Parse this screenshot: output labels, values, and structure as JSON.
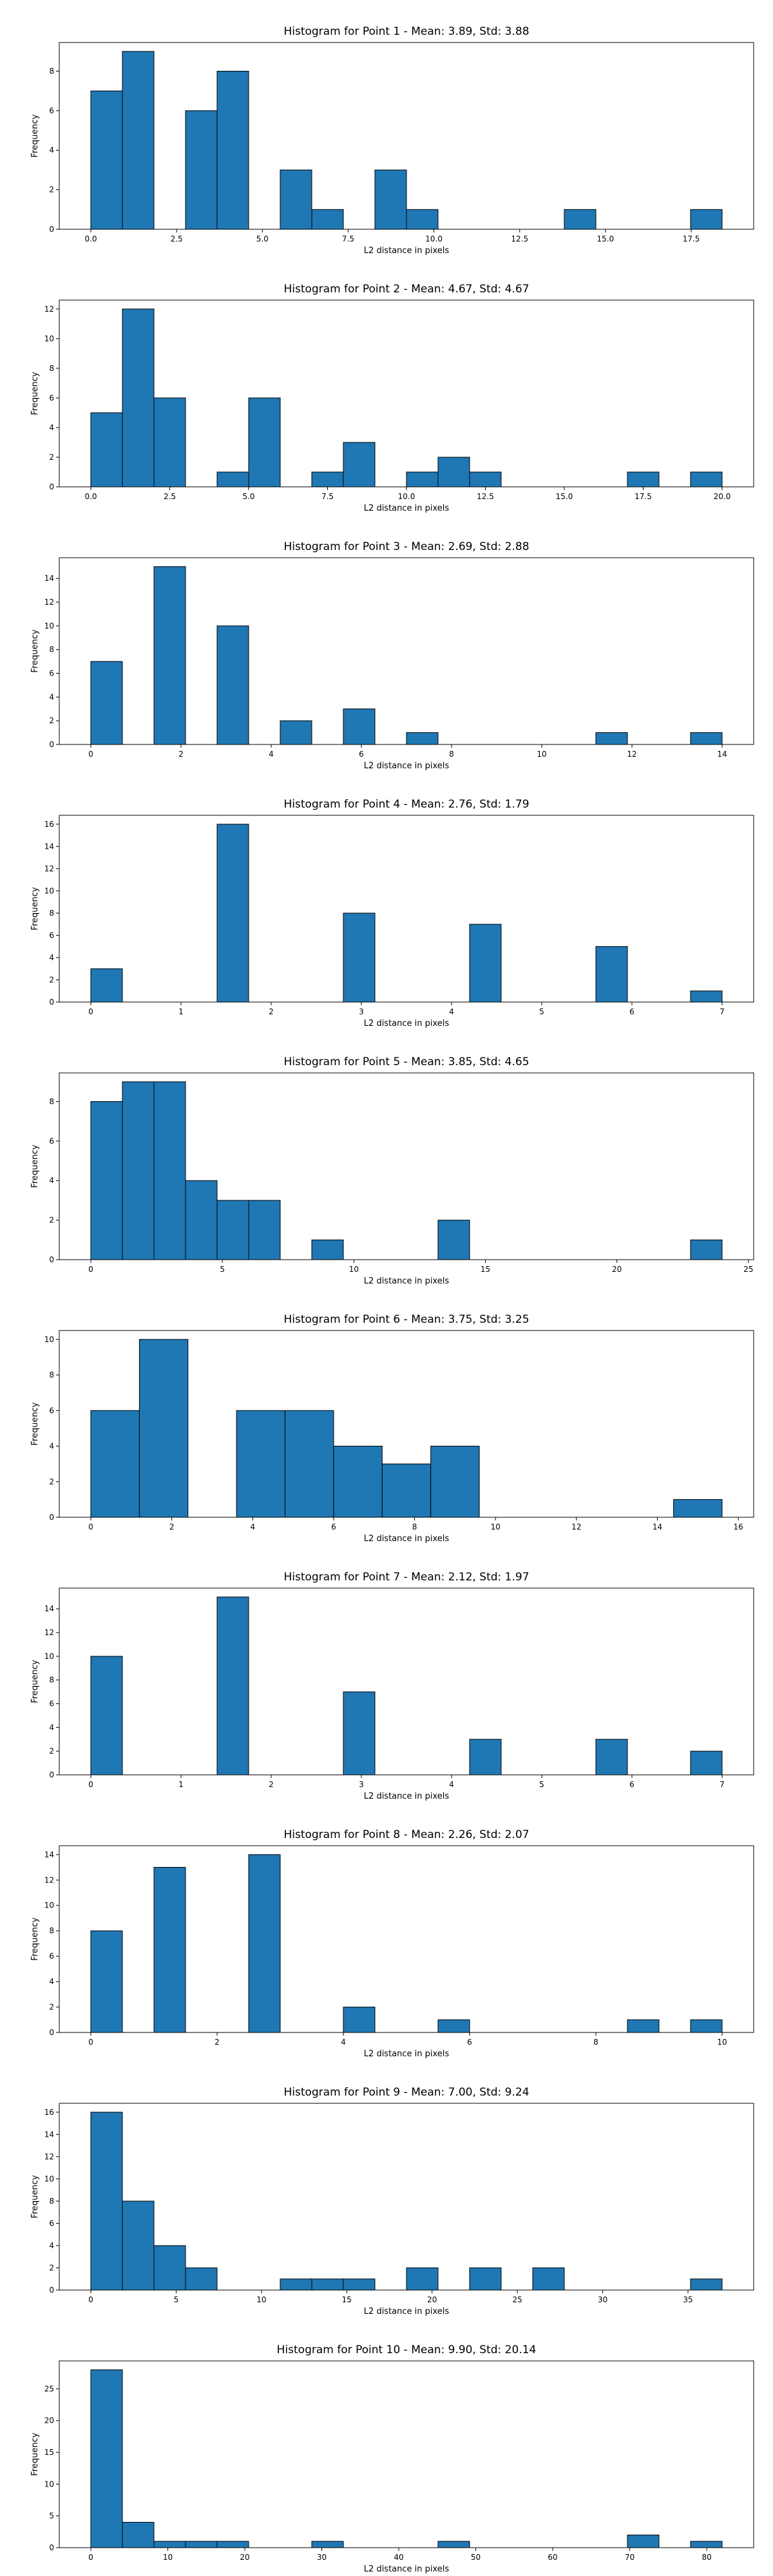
{
  "colors": {
    "bar_fill": "#1f77b4",
    "bar_edge": "#000000",
    "axis": "#000000"
  },
  "chart_data": [
    {
      "type": "bar",
      "title": "Histogram for Point 1 - Mean: 3.89, Std: 3.88",
      "xlabel": "L2 distance in pixels",
      "ylabel": "Frequency",
      "xlim": [
        -0.92,
        19.32
      ],
      "ylim": [
        0,
        9.45
      ],
      "xticks": [
        0,
        2.5,
        5,
        7.5,
        10,
        12.5,
        15,
        17.5
      ],
      "xtick_labels": [
        "0.0",
        "2.5",
        "5.0",
        "7.5",
        "10.0",
        "12.5",
        "15.0",
        "17.5"
      ],
      "yticks": [
        0,
        2,
        4,
        6,
        8
      ],
      "bins": [
        {
          "x0": 0.0,
          "x1": 0.92,
          "count": 7
        },
        {
          "x0": 0.92,
          "x1": 1.84,
          "count": 9
        },
        {
          "x0": 2.76,
          "x1": 3.68,
          "count": 6
        },
        {
          "x0": 3.68,
          "x1": 4.6,
          "count": 8
        },
        {
          "x0": 5.52,
          "x1": 6.44,
          "count": 3
        },
        {
          "x0": 6.44,
          "x1": 7.36,
          "count": 1
        },
        {
          "x0": 8.28,
          "x1": 9.2,
          "count": 3
        },
        {
          "x0": 9.2,
          "x1": 10.12,
          "count": 1
        },
        {
          "x0": 13.8,
          "x1": 14.72,
          "count": 1
        },
        {
          "x0": 17.48,
          "x1": 18.4,
          "count": 1
        }
      ]
    },
    {
      "type": "bar",
      "title": "Histogram for Point 2 - Mean: 4.67, Std: 4.67",
      "xlabel": "L2 distance in pixels",
      "ylabel": "Frequency",
      "xlim": [
        -1.0,
        21.0
      ],
      "ylim": [
        0,
        12.6
      ],
      "xticks": [
        0,
        2.5,
        5,
        7.5,
        10,
        12.5,
        15,
        17.5,
        20
      ],
      "xtick_labels": [
        "0.0",
        "2.5",
        "5.0",
        "7.5",
        "10.0",
        "12.5",
        "15.0",
        "17.5",
        "20.0"
      ],
      "yticks": [
        0,
        2,
        4,
        6,
        8,
        10,
        12
      ],
      "bins": [
        {
          "x0": 0.0,
          "x1": 1.0,
          "count": 5
        },
        {
          "x0": 1.0,
          "x1": 2.0,
          "count": 12
        },
        {
          "x0": 2.0,
          "x1": 3.0,
          "count": 6
        },
        {
          "x0": 4.0,
          "x1": 5.0,
          "count": 1
        },
        {
          "x0": 5.0,
          "x1": 6.0,
          "count": 6
        },
        {
          "x0": 7.0,
          "x1": 8.0,
          "count": 1
        },
        {
          "x0": 8.0,
          "x1": 9.0,
          "count": 3
        },
        {
          "x0": 10.0,
          "x1": 11.0,
          "count": 1
        },
        {
          "x0": 11.0,
          "x1": 12.0,
          "count": 2
        },
        {
          "x0": 12.0,
          "x1": 13.0,
          "count": 1
        },
        {
          "x0": 17.0,
          "x1": 18.0,
          "count": 1
        },
        {
          "x0": 19.0,
          "x1": 20.0,
          "count": 1
        }
      ]
    },
    {
      "type": "bar",
      "title": "Histogram for Point 3 - Mean: 2.69, Std: 2.88",
      "xlabel": "L2 distance in pixels",
      "ylabel": "Frequency",
      "xlim": [
        -0.7,
        14.7
      ],
      "ylim": [
        0,
        15.75
      ],
      "xticks": [
        0,
        2,
        4,
        6,
        8,
        10,
        12,
        14
      ],
      "xtick_labels": [
        "0",
        "2",
        "4",
        "6",
        "8",
        "10",
        "12",
        "14"
      ],
      "yticks": [
        0,
        2,
        4,
        6,
        8,
        10,
        12,
        14
      ],
      "bins": [
        {
          "x0": 0.0,
          "x1": 0.7,
          "count": 7
        },
        {
          "x0": 1.4,
          "x1": 2.1,
          "count": 15
        },
        {
          "x0": 2.8,
          "x1": 3.5,
          "count": 10
        },
        {
          "x0": 4.2,
          "x1": 4.9,
          "count": 2
        },
        {
          "x0": 5.6,
          "x1": 6.3,
          "count": 3
        },
        {
          "x0": 7.0,
          "x1": 7.7,
          "count": 1
        },
        {
          "x0": 11.2,
          "x1": 11.9,
          "count": 1
        },
        {
          "x0": 13.3,
          "x1": 14.0,
          "count": 1
        }
      ]
    },
    {
      "type": "bar",
      "title": "Histogram for Point 4 - Mean: 2.76, Std: 1.79",
      "xlabel": "L2 distance in pixels",
      "ylabel": "Frequency",
      "xlim": [
        -0.35,
        7.35
      ],
      "ylim": [
        0,
        16.8
      ],
      "xticks": [
        0,
        1,
        2,
        3,
        4,
        5,
        6,
        7
      ],
      "xtick_labels": [
        "0",
        "1",
        "2",
        "3",
        "4",
        "5",
        "6",
        "7"
      ],
      "yticks": [
        0,
        2,
        4,
        6,
        8,
        10,
        12,
        14,
        16
      ],
      "bins": [
        {
          "x0": 0.0,
          "x1": 0.35,
          "count": 3
        },
        {
          "x0": 1.4,
          "x1": 1.75,
          "count": 16
        },
        {
          "x0": 2.8,
          "x1": 3.15,
          "count": 8
        },
        {
          "x0": 4.2,
          "x1": 4.55,
          "count": 7
        },
        {
          "x0": 5.6,
          "x1": 5.95,
          "count": 5
        },
        {
          "x0": 6.65,
          "x1": 7.0,
          "count": 1
        }
      ]
    },
    {
      "type": "bar",
      "title": "Histogram for Point 5 - Mean: 3.85, Std: 4.65",
      "xlabel": "L2 distance in pixels",
      "ylabel": "Frequency",
      "xlim": [
        -1.2,
        25.2
      ],
      "ylim": [
        0,
        9.45
      ],
      "xticks": [
        0,
        5,
        10,
        15,
        20,
        25
      ],
      "xtick_labels": [
        "0",
        "5",
        "10",
        "15",
        "20",
        "25"
      ],
      "yticks": [
        0,
        2,
        4,
        6,
        8
      ],
      "bins": [
        {
          "x0": 0.0,
          "x1": 1.2,
          "count": 8
        },
        {
          "x0": 1.2,
          "x1": 2.4,
          "count": 9
        },
        {
          "x0": 2.4,
          "x1": 3.6,
          "count": 9
        },
        {
          "x0": 3.6,
          "x1": 4.8,
          "count": 4
        },
        {
          "x0": 4.8,
          "x1": 6.0,
          "count": 3
        },
        {
          "x0": 6.0,
          "x1": 7.2,
          "count": 3
        },
        {
          "x0": 8.4,
          "x1": 9.6,
          "count": 1
        },
        {
          "x0": 13.2,
          "x1": 14.4,
          "count": 2
        },
        {
          "x0": 22.8,
          "x1": 24.0,
          "count": 1
        }
      ]
    },
    {
      "type": "bar",
      "title": "Histogram for Point 6 - Mean: 3.75, Std: 3.25",
      "xlabel": "L2 distance in pixels",
      "ylabel": "Frequency",
      "xlim": [
        -0.78,
        16.38
      ],
      "ylim": [
        0,
        10.5
      ],
      "xticks": [
        0,
        2,
        4,
        6,
        8,
        10,
        12,
        14,
        16
      ],
      "xtick_labels": [
        "0",
        "2",
        "4",
        "6",
        "8",
        "10",
        "12",
        "14",
        "16"
      ],
      "yticks": [
        0,
        2,
        4,
        6,
        8,
        10
      ],
      "bins": [
        {
          "x0": 0.0,
          "x1": 1.2,
          "count": 6
        },
        {
          "x0": 1.2,
          "x1": 2.4,
          "count": 10
        },
        {
          "x0": 3.6,
          "x1": 4.8,
          "count": 6
        },
        {
          "x0": 4.8,
          "x1": 6.0,
          "count": 6
        },
        {
          "x0": 6.0,
          "x1": 7.2,
          "count": 4
        },
        {
          "x0": 7.2,
          "x1": 8.4,
          "count": 3
        },
        {
          "x0": 8.4,
          "x1": 9.6,
          "count": 4
        },
        {
          "x0": 14.4,
          "x1": 15.6,
          "count": 1
        }
      ],
      "bins_alt_scale": 0.65
    },
    {
      "type": "bar",
      "title": "Histogram for Point 7 - Mean: 2.12, Std: 1.97",
      "xlabel": "L2 distance in pixels",
      "ylabel": "Frequency",
      "xlim": [
        -0.35,
        7.35
      ],
      "ylim": [
        0,
        15.75
      ],
      "xticks": [
        0,
        1,
        2,
        3,
        4,
        5,
        6,
        7
      ],
      "xtick_labels": [
        "0",
        "1",
        "2",
        "3",
        "4",
        "5",
        "6",
        "7"
      ],
      "yticks": [
        0,
        2,
        4,
        6,
        8,
        10,
        12,
        14
      ],
      "bins": [
        {
          "x0": 0.0,
          "x1": 0.35,
          "count": 10
        },
        {
          "x0": 1.4,
          "x1": 1.75,
          "count": 15
        },
        {
          "x0": 2.8,
          "x1": 3.15,
          "count": 7
        },
        {
          "x0": 4.2,
          "x1": 4.55,
          "count": 3
        },
        {
          "x0": 5.6,
          "x1": 5.95,
          "count": 3
        },
        {
          "x0": 6.65,
          "x1": 7.0,
          "count": 2
        }
      ]
    },
    {
      "type": "bar",
      "title": "Histogram for Point 8 - Mean: 2.26, Std: 2.07",
      "xlabel": "L2 distance in pixels",
      "ylabel": "Frequency",
      "xlim": [
        -0.5,
        10.5
      ],
      "ylim": [
        0,
        14.7
      ],
      "xticks": [
        0,
        2,
        4,
        6,
        8,
        10
      ],
      "xtick_labels": [
        "0",
        "2",
        "4",
        "6",
        "8",
        "10"
      ],
      "yticks": [
        0,
        2,
        4,
        6,
        8,
        10,
        12,
        14
      ],
      "bins": [
        {
          "x0": 0.0,
          "x1": 0.5,
          "count": 8
        },
        {
          "x0": 1.0,
          "x1": 1.5,
          "count": 13
        },
        {
          "x0": 2.5,
          "x1": 3.0,
          "count": 14
        },
        {
          "x0": 4.0,
          "x1": 4.5,
          "count": 2
        },
        {
          "x0": 5.5,
          "x1": 6.0,
          "count": 1
        },
        {
          "x0": 8.5,
          "x1": 9.0,
          "count": 1
        },
        {
          "x0": 9.5,
          "x1": 10.0,
          "count": 1
        }
      ]
    },
    {
      "type": "bar",
      "title": "Histogram for Point 9 - Mean: 7.00, Std: 9.24",
      "xlabel": "L2 distance in pixels",
      "ylabel": "Frequency",
      "xlim": [
        -1.85,
        38.85
      ],
      "ylim": [
        0,
        16.8
      ],
      "xticks": [
        0,
        5,
        10,
        15,
        20,
        25,
        30,
        35
      ],
      "xtick_labels": [
        "0",
        "5",
        "10",
        "15",
        "20",
        "25",
        "30",
        "35"
      ],
      "yticks": [
        0,
        2,
        4,
        6,
        8,
        10,
        12,
        14,
        16
      ],
      "bins": [
        {
          "x0": 0.0,
          "x1": 1.85,
          "count": 16
        },
        {
          "x0": 1.85,
          "x1": 3.7,
          "count": 8
        },
        {
          "x0": 3.7,
          "x1": 5.55,
          "count": 4
        },
        {
          "x0": 5.55,
          "x1": 7.4,
          "count": 2
        },
        {
          "x0": 11.1,
          "x1": 12.95,
          "count": 1
        },
        {
          "x0": 12.95,
          "x1": 14.8,
          "count": 1
        },
        {
          "x0": 14.8,
          "x1": 16.65,
          "count": 1
        },
        {
          "x0": 18.5,
          "x1": 20.35,
          "count": 2
        },
        {
          "x0": 22.2,
          "x1": 24.05,
          "count": 2
        },
        {
          "x0": 25.9,
          "x1": 27.75,
          "count": 2
        },
        {
          "x0": 35.15,
          "x1": 37.0,
          "count": 1
        }
      ]
    },
    {
      "type": "bar",
      "title": "Histogram for Point 10 - Mean: 9.90, Std: 20.14",
      "xlabel": "L2 distance in pixels",
      "ylabel": "Frequency",
      "xlim": [
        -4.1,
        86.1
      ],
      "ylim": [
        0,
        29.4
      ],
      "xticks": [
        0,
        10,
        20,
        30,
        40,
        50,
        60,
        70,
        80
      ],
      "xtick_labels": [
        "0",
        "10",
        "20",
        "30",
        "40",
        "50",
        "60",
        "70",
        "80"
      ],
      "yticks": [
        0,
        5,
        10,
        15,
        20,
        25
      ],
      "bins": [
        {
          "x0": 0.0,
          "x1": 4.1,
          "count": 28
        },
        {
          "x0": 4.1,
          "x1": 8.2,
          "count": 4
        },
        {
          "x0": 8.2,
          "x1": 12.3,
          "count": 1
        },
        {
          "x0": 12.3,
          "x1": 16.4,
          "count": 1
        },
        {
          "x0": 16.4,
          "x1": 20.5,
          "count": 1
        },
        {
          "x0": 28.7,
          "x1": 32.8,
          "count": 1
        },
        {
          "x0": 45.1,
          "x1": 49.2,
          "count": 1
        },
        {
          "x0": 69.7,
          "x1": 73.8,
          "count": 2
        },
        {
          "x0": 77.9,
          "x1": 82.0,
          "count": 1
        }
      ]
    }
  ]
}
